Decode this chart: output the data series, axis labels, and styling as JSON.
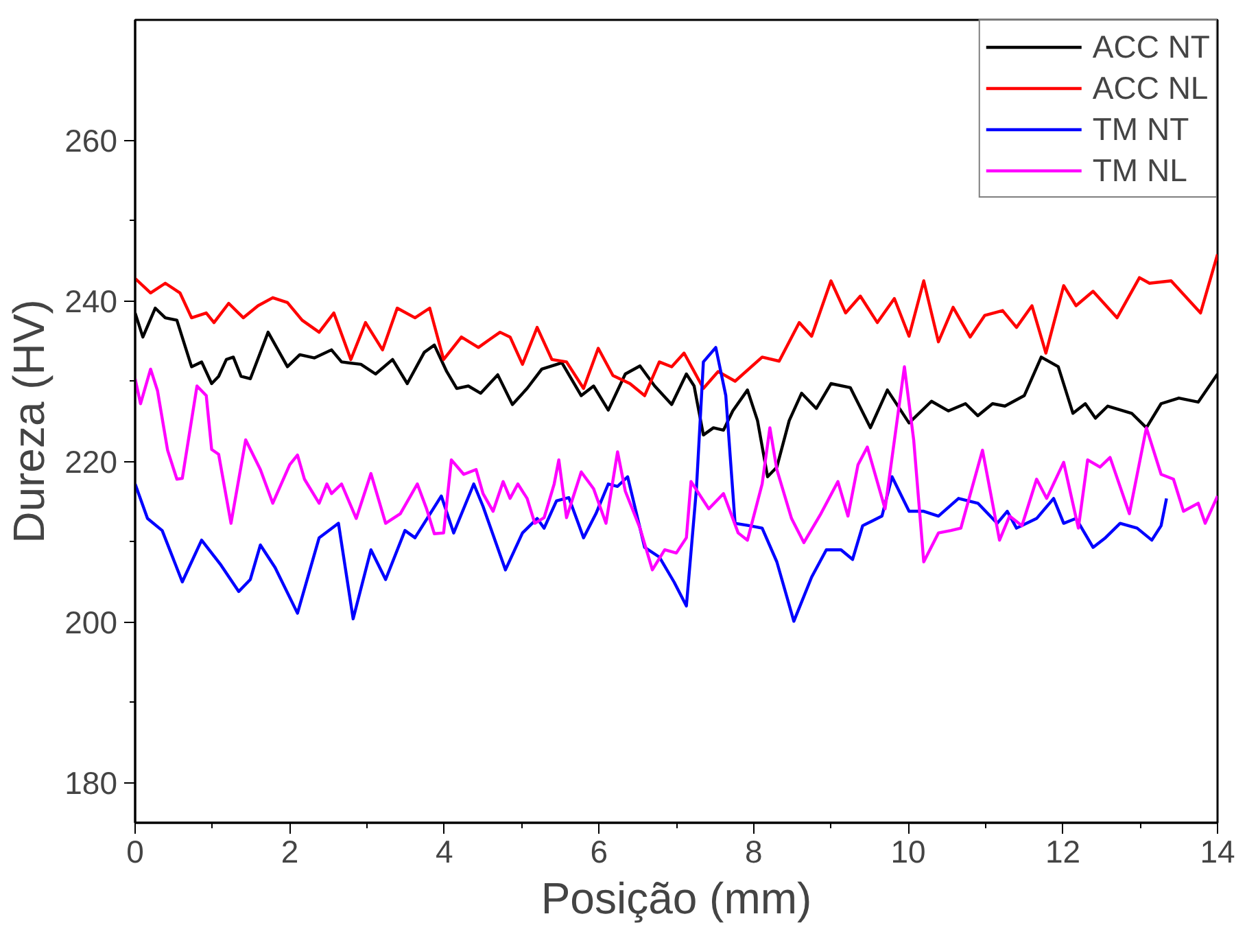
{
  "chart_data": {
    "type": "line",
    "xlabel": "Posição (mm)",
    "ylabel": "Dureza (HV)",
    "xlim": [
      0,
      14
    ],
    "ylim": [
      175,
      275
    ],
    "xticks": [
      0,
      2,
      4,
      6,
      8,
      10,
      12,
      14
    ],
    "yticks": [
      180,
      200,
      220,
      240,
      260
    ],
    "grid": false,
    "legend": "top right",
    "marker": "none",
    "line_style": "solid",
    "series": [
      {
        "name": "ACC NT",
        "color": "#000000",
        "x": [
          0.0,
          0.1,
          0.26,
          0.39,
          0.54,
          0.73,
          0.86,
          0.99,
          1.08,
          1.18,
          1.27,
          1.37,
          1.49,
          1.72,
          1.97,
          2.13,
          2.32,
          2.54,
          2.67,
          2.92,
          3.11,
          3.33,
          3.52,
          3.74,
          3.87,
          4.03,
          4.16,
          4.31,
          4.47,
          4.69,
          4.88,
          5.07,
          5.26,
          5.52,
          5.77,
          5.93,
          6.12,
          6.34,
          6.53,
          6.72,
          6.94,
          7.13,
          7.23,
          7.35,
          7.48,
          7.61,
          7.73,
          7.92,
          8.05,
          8.18,
          8.3,
          8.46,
          8.62,
          8.81,
          9.0,
          9.25,
          9.51,
          9.73,
          10.01,
          10.3,
          10.52,
          10.74,
          10.9,
          11.09,
          11.25,
          11.5,
          11.72,
          11.94,
          12.13,
          12.29,
          12.42,
          12.58,
          12.89,
          13.08,
          13.27,
          13.5,
          13.75,
          14.0
        ],
        "values": [
          238.5,
          235.5,
          239.1,
          237.9,
          237.6,
          231.8,
          232.4,
          229.7,
          230.6,
          232.7,
          233.0,
          230.6,
          230.3,
          236.1,
          231.8,
          233.3,
          232.9,
          233.9,
          232.4,
          232.1,
          230.9,
          232.7,
          229.7,
          233.6,
          234.5,
          231.2,
          229.1,
          229.4,
          228.5,
          230.8,
          227.1,
          229.1,
          231.5,
          232.3,
          228.2,
          229.4,
          226.4,
          230.9,
          231.9,
          229.4,
          227.1,
          230.9,
          229.4,
          223.3,
          224.2,
          223.9,
          226.3,
          228.9,
          225.1,
          218.1,
          219.3,
          225.1,
          228.5,
          226.6,
          229.7,
          229.2,
          224.2,
          228.9,
          224.8,
          227.5,
          226.3,
          227.2,
          225.7,
          227.2,
          226.9,
          228.2,
          233.0,
          231.8,
          226.0,
          227.2,
          225.4,
          226.9,
          226.0,
          224.2,
          227.2,
          227.9,
          227.4,
          230.9
        ]
      },
      {
        "name": "ACC NL",
        "color": "#ff0000",
        "x": [
          0.0,
          0.2,
          0.39,
          0.58,
          0.73,
          0.92,
          1.02,
          1.21,
          1.4,
          1.59,
          1.78,
          1.97,
          2.16,
          2.38,
          2.57,
          2.79,
          2.98,
          3.2,
          3.39,
          3.62,
          3.81,
          3.99,
          4.22,
          4.44,
          4.6,
          4.72,
          4.85,
          5.01,
          5.2,
          5.39,
          5.58,
          5.8,
          5.99,
          6.18,
          6.4,
          6.59,
          6.78,
          6.94,
          7.1,
          7.35,
          7.54,
          7.76,
          8.11,
          8.33,
          8.59,
          8.75,
          9.0,
          9.19,
          9.38,
          9.6,
          9.82,
          10.01,
          10.2,
          10.39,
          10.58,
          10.8,
          10.99,
          11.22,
          11.4,
          11.6,
          11.78,
          12.01,
          12.17,
          12.39,
          12.7,
          12.99,
          13.12,
          13.4,
          13.78,
          14.0
        ],
        "values": [
          242.8,
          241.0,
          242.2,
          241.0,
          237.9,
          238.5,
          237.3,
          239.7,
          237.9,
          239.4,
          240.4,
          239.8,
          237.6,
          236.1,
          238.5,
          232.7,
          237.3,
          233.9,
          239.1,
          237.9,
          239.1,
          232.7,
          235.5,
          234.2,
          235.3,
          236.1,
          235.5,
          232.1,
          236.7,
          232.7,
          232.4,
          229.1,
          234.1,
          230.7,
          229.7,
          228.2,
          232.4,
          231.8,
          233.5,
          229.1,
          231.2,
          230.0,
          233.0,
          232.5,
          237.3,
          235.6,
          242.5,
          238.5,
          240.6,
          237.3,
          240.3,
          235.6,
          242.5,
          234.9,
          239.2,
          235.5,
          238.2,
          238.8,
          236.7,
          239.4,
          233.5,
          241.9,
          239.4,
          241.2,
          237.9,
          242.9,
          242.2,
          242.5,
          238.5,
          245.8
        ]
      },
      {
        "name": "TM NT",
        "color": "#0000ff",
        "x": [
          0.0,
          0.16,
          0.35,
          0.61,
          0.86,
          1.11,
          1.34,
          1.49,
          1.62,
          1.81,
          2.1,
          2.38,
          2.63,
          2.82,
          3.05,
          3.24,
          3.49,
          3.62,
          3.96,
          4.12,
          4.38,
          4.5,
          4.79,
          5.01,
          5.2,
          5.29,
          5.45,
          5.61,
          5.8,
          5.96,
          6.12,
          6.24,
          6.37,
          6.59,
          6.78,
          6.97,
          7.13,
          7.26,
          7.35,
          7.51,
          7.64,
          7.76,
          7.95,
          8.11,
          8.3,
          8.52,
          8.75,
          8.94,
          9.13,
          9.28,
          9.41,
          9.66,
          9.79,
          10.01,
          10.2,
          10.39,
          10.65,
          10.9,
          11.15,
          11.28,
          11.4,
          11.66,
          11.88,
          12.01,
          12.17,
          12.39,
          12.55,
          12.74,
          12.96,
          13.15,
          13.27,
          13.34
        ],
        "values": [
          217.2,
          212.9,
          211.4,
          205.0,
          210.2,
          207.1,
          203.8,
          205.3,
          209.6,
          206.8,
          201.1,
          210.5,
          212.3,
          200.4,
          209.0,
          205.3,
          211.4,
          210.5,
          215.7,
          211.1,
          217.2,
          214.4,
          206.5,
          211.1,
          212.9,
          211.7,
          215.1,
          215.5,
          210.5,
          213.5,
          217.2,
          216.9,
          218.1,
          209.3,
          208.1,
          205.0,
          202.0,
          216.6,
          232.4,
          234.2,
          228.2,
          212.3,
          212.0,
          211.7,
          207.5,
          200.1,
          205.6,
          209.0,
          209.0,
          207.8,
          212.0,
          213.2,
          218.1,
          213.8,
          213.8,
          213.2,
          215.4,
          214.8,
          212.3,
          213.8,
          211.7,
          212.9,
          215.4,
          212.3,
          212.9,
          209.3,
          210.5,
          212.3,
          211.7,
          210.2,
          212.0,
          215.4
        ]
      },
      {
        "name": "TM NL",
        "color": "#ff00ff",
        "x": [
          0.0,
          0.07,
          0.2,
          0.29,
          0.42,
          0.54,
          0.61,
          0.8,
          0.92,
          0.99,
          1.08,
          1.24,
          1.43,
          1.62,
          1.78,
          2.0,
          2.1,
          2.19,
          2.38,
          2.48,
          2.54,
          2.67,
          2.86,
          3.05,
          3.24,
          3.43,
          3.65,
          3.77,
          3.87,
          3.99,
          4.09,
          4.25,
          4.41,
          4.5,
          4.63,
          4.76,
          4.85,
          4.95,
          5.07,
          5.17,
          5.29,
          5.42,
          5.48,
          5.58,
          5.77,
          5.93,
          6.09,
          6.24,
          6.34,
          6.53,
          6.69,
          6.85,
          7.0,
          7.13,
          7.19,
          7.42,
          7.61,
          7.8,
          7.92,
          8.11,
          8.21,
          8.3,
          8.49,
          8.65,
          8.87,
          9.09,
          9.22,
          9.35,
          9.47,
          9.7,
          9.95,
          10.07,
          10.2,
          10.39,
          10.55,
          10.68,
          10.96,
          11.18,
          11.31,
          11.47,
          11.66,
          11.79,
          12.01,
          12.2,
          12.32,
          12.48,
          12.61,
          12.86,
          13.08,
          13.27,
          13.43,
          13.56,
          13.75,
          13.84,
          14.0
        ],
        "values": [
          230.3,
          227.2,
          231.5,
          228.8,
          221.4,
          217.8,
          217.9,
          229.4,
          228.2,
          221.5,
          220.9,
          212.3,
          222.7,
          219.0,
          214.8,
          219.6,
          220.8,
          217.8,
          214.8,
          217.2,
          216.0,
          217.2,
          212.9,
          218.5,
          212.3,
          213.5,
          217.2,
          214.1,
          211.0,
          211.1,
          220.2,
          218.4,
          219.0,
          216.0,
          213.8,
          217.5,
          215.4,
          217.2,
          215.4,
          212.3,
          213.0,
          217.2,
          220.2,
          213.0,
          218.7,
          216.6,
          212.3,
          221.2,
          216.3,
          211.7,
          206.5,
          209.0,
          208.6,
          210.5,
          217.5,
          214.1,
          216.0,
          211.1,
          210.2,
          217.2,
          224.2,
          219.0,
          212.9,
          209.9,
          213.5,
          217.5,
          213.2,
          219.6,
          221.8,
          214.1,
          231.8,
          222.7,
          207.5,
          211.1,
          211.4,
          211.7,
          221.4,
          210.2,
          213.2,
          212.0,
          217.8,
          215.4,
          219.9,
          211.7,
          220.2,
          219.3,
          220.5,
          213.5,
          224.2,
          218.4,
          217.8,
          213.8,
          214.8,
          212.3,
          215.7
        ]
      }
    ]
  }
}
